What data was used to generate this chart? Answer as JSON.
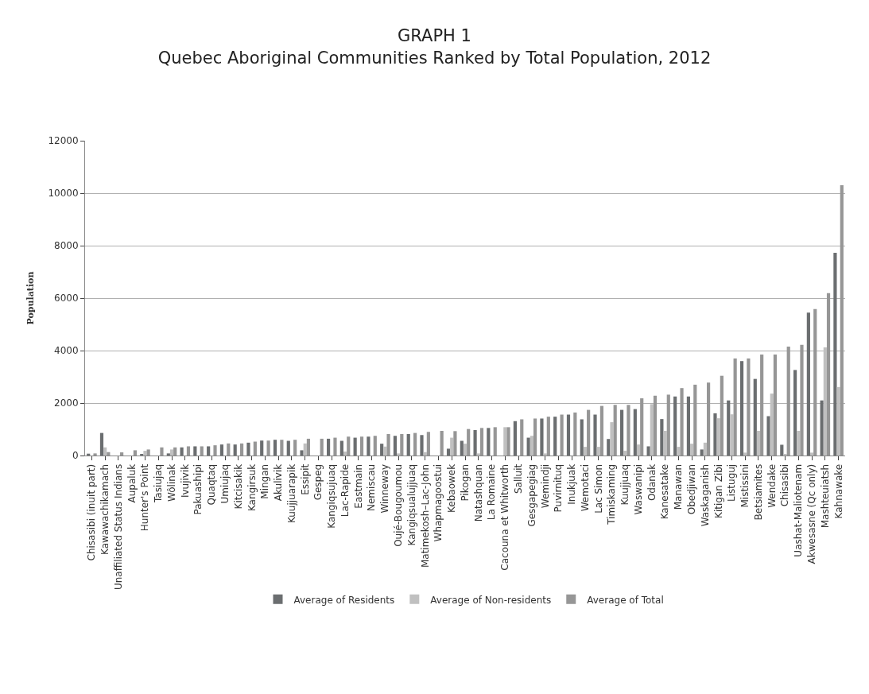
{
  "chart_data": {
    "type": "bar",
    "title": "GRAPH 1",
    "subtitle": "Quebec Aboriginal Communities Ranked by Total Population, 2012",
    "ylabel": "Population",
    "categories": [
      "Chisasibi (inuit part)",
      "Kawawachikamach",
      "Unaffiliated Status Indians",
      "Aupaluk",
      "Hunter's Point",
      "Tasiujaq",
      "Wôlinak",
      "Ivujivik",
      "Pakuashipi",
      "Quaqtaq",
      "Umiujaq",
      "Kitcisakik",
      "Kangirsuk",
      "Mingan",
      "Akulivik",
      "Kuujjuarapik",
      "Essipit",
      "Gespeg",
      "Kangiqsujuaq",
      "Lac-Rapide",
      "Eastmain",
      "Nemiscau",
      "Winneway",
      "Oujé-Bougoumou",
      "Kangiqsualujjuaq",
      "Matimekosh–Lac-John",
      "Whapmagoostui",
      "Kebaowek",
      "Pikogan",
      "Natashquan",
      "La Romaine",
      "Cacouna et Whitworth",
      "Salluit",
      "Gesgapegiag",
      "Wemindji",
      "Puvirnituq",
      "Inukjuak",
      "Wemotaci",
      "Lac Simon",
      "Timiskaming",
      "Kuujjuaq",
      "Waswanipi",
      "Odanak",
      "Kanesatake",
      "Manawan",
      "Obedjiwan",
      "Waskaganish",
      "Kitigan Zibi",
      "Listuguj",
      "Mistissini",
      "Betsiamites",
      "Wendake",
      "Chisasibi",
      "Uashat-Maliotenam",
      "Akwesasne (Qc only)",
      "Mashteuiatsh",
      "Kahnawake"
    ],
    "series": [
      {
        "name": "Average of Residents",
        "color": "#6b6e70",
        "values": [
          70,
          860,
          0,
          0,
          60,
          0,
          80,
          310,
          350,
          350,
          420,
          420,
          490,
          570,
          600,
          560,
          200,
          0,
          640,
          560,
          680,
          720,
          450,
          750,
          820,
          780,
          0,
          260,
          560,
          970,
          1050,
          0,
          1310,
          680,
          1410,
          1480,
          1560,
          1380,
          1560,
          630,
          1740,
          1770,
          350,
          1390,
          2250,
          2250,
          230,
          1610,
          2100,
          3600,
          2920,
          1500,
          410,
          3260,
          5450,
          2100,
          7730
        ]
      },
      {
        "name": "Average of Non-residents",
        "color": "#c0c0c0",
        "values": [
          0,
          310,
          0,
          0,
          180,
          0,
          230,
          0,
          0,
          0,
          0,
          0,
          0,
          0,
          0,
          0,
          460,
          0,
          0,
          150,
          0,
          0,
          340,
          80,
          0,
          130,
          0,
          680,
          450,
          80,
          0,
          1080,
          0,
          750,
          80,
          0,
          0,
          330,
          330,
          1270,
          180,
          420,
          1960,
          940,
          330,
          450,
          490,
          1420,
          1570,
          110,
          940,
          2360,
          50,
          940,
          110,
          4120,
          2610
        ]
      },
      {
        "name": "Average of Total",
        "color": "#969696",
        "values": [
          80,
          130,
          120,
          200,
          230,
          310,
          310,
          350,
          350,
          390,
          460,
          460,
          530,
          570,
          600,
          600,
          640,
          640,
          680,
          720,
          720,
          750,
          820,
          820,
          860,
          900,
          940,
          930,
          1010,
          1050,
          1080,
          1080,
          1380,
          1410,
          1480,
          1560,
          1640,
          1740,
          1890,
          1930,
          1930,
          2180,
          2280,
          2320,
          2570,
          2700,
          2780,
          3040,
          3700,
          3700,
          3850,
          3850,
          4150,
          4220,
          5580,
          6190,
          10300
        ]
      }
    ],
    "ylim": [
      0,
      12000
    ],
    "yticks": [
      0,
      2000,
      4000,
      6000,
      8000,
      10000,
      12000
    ],
    "grid": "y",
    "legend": "bottom"
  }
}
